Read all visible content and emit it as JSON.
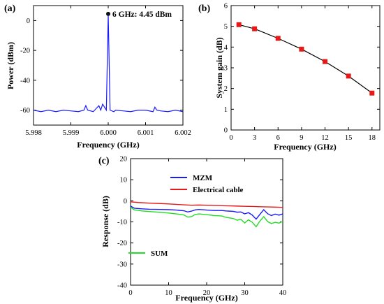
{
  "colors": {
    "blue": "#1a1aff",
    "red": "#e61919",
    "green": "#22dd22",
    "axis": "#000000",
    "black": "#000000"
  },
  "chart_data": [
    {
      "panel_label": "(a)",
      "type": "line",
      "xlabel": "Frequency (GHz)",
      "ylabel": "Power (dBm)",
      "xlim": [
        5.998,
        6.002
      ],
      "ylim": [
        -70,
        10
      ],
      "xticks": [
        "5.998",
        "5.999",
        "6.000",
        "6.001",
        "6.002"
      ],
      "yticks": [
        "-60",
        "-40",
        "-20",
        "0"
      ],
      "series": [
        {
          "color": "blue",
          "x": [
            5.998,
            5.9982,
            5.9984,
            5.9986,
            5.9988,
            5.999,
            5.9992,
            5.99935,
            5.9994,
            5.99945,
            5.9996,
            5.99975,
            5.9998,
            5.99985,
            5.99995,
            6.0,
            6.00005,
            6.00015,
            6.0002,
            6.0004,
            6.0006,
            6.0008,
            6.001,
            6.0012,
            6.00125,
            6.0013,
            6.0014,
            6.0016,
            6.0018,
            6.002
          ],
          "y": [
            -60,
            -61,
            -60,
            -61,
            -60,
            -60.5,
            -61,
            -60,
            -57,
            -60,
            -61,
            -57,
            -60,
            -56,
            -60,
            4.45,
            -60,
            -61,
            -60,
            -60.5,
            -61,
            -60,
            -60,
            -61,
            -58,
            -60,
            -60.5,
            -61,
            -60,
            -61
          ]
        }
      ],
      "annotation": {
        "text": "6 GHz: 4.45 dBm",
        "x": 6.0,
        "y": 4.45
      }
    },
    {
      "panel_label": "(b)",
      "type": "line",
      "xlabel": "Frequency (GHz)",
      "ylabel": "System gain (dB)",
      "xlim": [
        0,
        19
      ],
      "ylim": [
        0,
        6
      ],
      "xticks": [
        "0",
        "3",
        "6",
        "9",
        "12",
        "15",
        "18"
      ],
      "yticks": [
        "0",
        "1",
        "2",
        "3",
        "4",
        "5",
        "6"
      ],
      "series": [
        {
          "color": "red",
          "x": [
            1,
            3,
            6,
            9,
            12,
            15,
            18
          ],
          "y": [
            5.08,
            4.88,
            4.42,
            3.9,
            3.3,
            2.6,
            1.78
          ]
        }
      ]
    },
    {
      "panel_label": "(c)",
      "type": "line",
      "xlabel": "Frequency (GHz)",
      "ylabel": "Response (dB)",
      "xlim": [
        0,
        40
      ],
      "ylim": [
        -40,
        20
      ],
      "xticks": [
        "0",
        "10",
        "20",
        "30",
        "40"
      ],
      "yticks": [
        "-40",
        "-30",
        "-20",
        "-10",
        "0",
        "10",
        "20"
      ],
      "series": [
        {
          "name": "MZM",
          "color": "blue",
          "x": [
            0,
            1,
            3,
            5,
            8,
            10,
            12,
            14,
            15,
            16,
            17,
            18,
            20,
            22,
            24,
            25,
            26,
            27,
            28,
            29,
            30,
            31,
            32,
            33,
            34,
            35,
            36,
            37,
            38,
            39,
            40
          ],
          "y": [
            -2.5,
            -3.5,
            -3.8,
            -4,
            -4.1,
            -4.2,
            -4.4,
            -4.7,
            -5.3,
            -4.9,
            -4.3,
            -4.1,
            -4.4,
            -4.6,
            -4.6,
            -4.8,
            -4.9,
            -5,
            -5.4,
            -5.3,
            -6.2,
            -5.6,
            -6.8,
            -8.7,
            -6.4,
            -4.2,
            -6.1,
            -7,
            -6.3,
            -6.8,
            -6.2
          ]
        },
        {
          "name": "Electrical cable",
          "color": "red",
          "x": [
            0,
            2,
            5,
            8,
            10,
            12,
            14,
            16,
            18,
            20,
            22,
            24,
            26,
            28,
            30,
            32,
            34,
            36,
            38,
            40
          ],
          "y": [
            -0.5,
            -0.8,
            -1.1,
            -1.3,
            -1.5,
            -1.7,
            -1.9,
            -2.1,
            -2.0,
            -2.1,
            -2.2,
            -2.3,
            -2.4,
            -2.5,
            -2.6,
            -2.7,
            -2.8,
            -2.9,
            -3.0,
            -3.1
          ]
        },
        {
          "name": "SUM",
          "color": "green",
          "x": [
            0,
            1,
            3,
            5,
            8,
            10,
            12,
            14,
            15,
            16,
            17,
            18,
            20,
            22,
            24,
            25,
            26,
            27,
            28,
            29,
            30,
            31,
            32,
            33,
            34,
            35,
            36,
            37,
            38,
            39,
            40
          ],
          "y": [
            -3,
            -4.3,
            -4.8,
            -5.1,
            -5.5,
            -5.8,
            -6.2,
            -6.7,
            -7.7,
            -7.5,
            -6.5,
            -6.2,
            -6.6,
            -7,
            -7.2,
            -7.8,
            -8.1,
            -8.4,
            -9.2,
            -8.8,
            -10.5,
            -9,
            -10.2,
            -12.3,
            -9.6,
            -7.5,
            -9.8,
            -10.8,
            -10.2,
            -10.6,
            -9.8
          ]
        }
      ],
      "legend": [
        {
          "label": "MZM",
          "color": "blue"
        },
        {
          "label": "Electrical cable",
          "color": "red"
        },
        {
          "label": "SUM",
          "color": "green"
        }
      ]
    }
  ]
}
